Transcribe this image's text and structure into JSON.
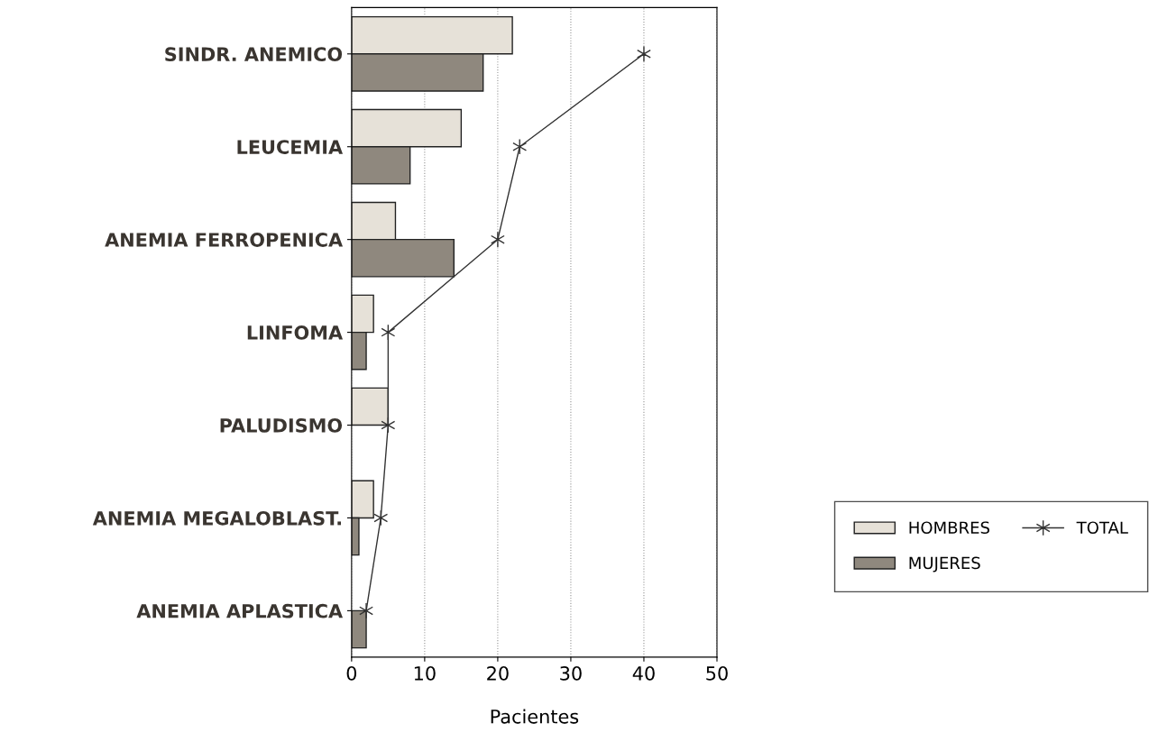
{
  "chart_data": {
    "type": "bar",
    "orientation": "horizontal",
    "xlabel": "Pacientes",
    "categories": [
      "SINDR. ANEMICO",
      "LEUCEMIA",
      "ANEMIA FERROPENICA",
      "LINFOMA",
      "PALUDISMO",
      "ANEMIA MEGALOBLAST.",
      "ANEMIA APLASTICA"
    ],
    "series": [
      {
        "name": "HOMBRES",
        "color": "#e6e1d8",
        "values": [
          22,
          15,
          6,
          3,
          5,
          3,
          0
        ]
      },
      {
        "name": "MUJERES",
        "color": "#8f887e",
        "values": [
          18,
          8,
          14,
          2,
          0,
          1,
          2
        ]
      },
      {
        "name": "TOTAL",
        "type": "line",
        "color": "#333333",
        "marker": "cross",
        "values": [
          40,
          23,
          20,
          5,
          5,
          4,
          2
        ]
      }
    ],
    "xlim": [
      0,
      50
    ],
    "xticks": [
      0,
      10,
      20,
      30,
      40,
      50
    ],
    "grid": "x",
    "legend": "right"
  }
}
